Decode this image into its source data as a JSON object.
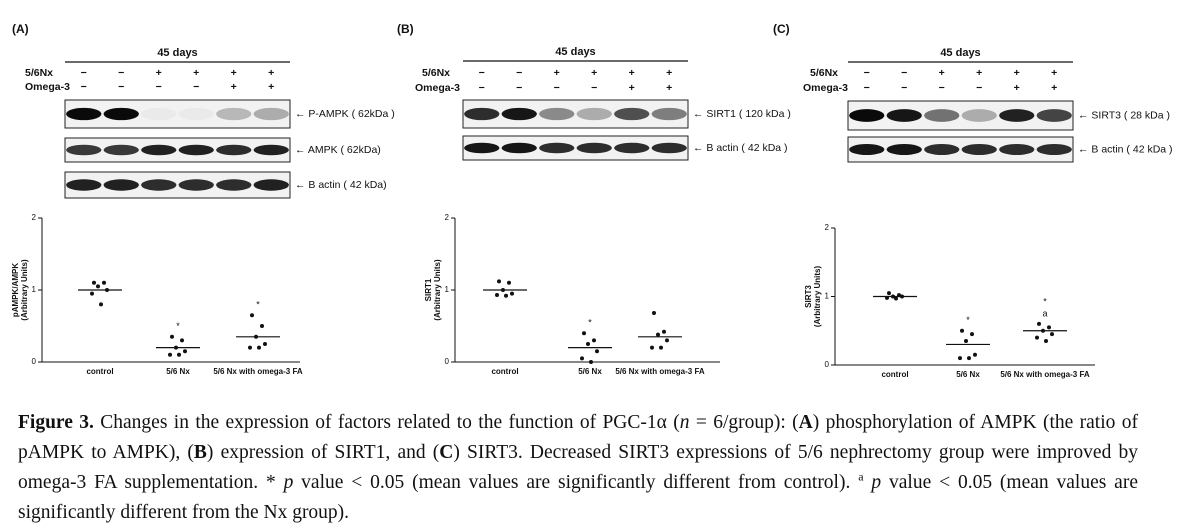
{
  "panels": [
    {
      "label": "(A)",
      "header": "45 days",
      "rows": [
        {
          "name": "5/6Nx",
          "signs": [
            "−",
            "−",
            "+",
            "+",
            "+",
            "+"
          ]
        },
        {
          "name": "Omega-3",
          "signs": [
            "−",
            "−",
            "−",
            "−",
            "+",
            "+"
          ]
        }
      ],
      "bands": [
        "← P-AMPK ( 62kDa )",
        "← AMPK ( 62kDa)",
        "← B actin ( 42 kDa)"
      ]
    },
    {
      "label": "(B)",
      "header": "45 days",
      "rows": [
        {
          "name": "5/6Nx",
          "signs": [
            "−",
            "−",
            "+",
            "+",
            "+",
            "+"
          ]
        },
        {
          "name": "Omega-3",
          "signs": [
            "−",
            "−",
            "−",
            "−",
            "+",
            "+"
          ]
        }
      ],
      "bands": [
        "← SIRT1 ( 120 kDa )",
        "← B actin ( 42 kDa )"
      ]
    },
    {
      "label": "(C)",
      "header": "45 days",
      "rows": [
        {
          "name": "5/6Nx",
          "signs": [
            "−",
            "−",
            "+",
            "+",
            "+",
            "+"
          ]
        },
        {
          "name": "Omega-3",
          "signs": [
            "−",
            "−",
            "−",
            "−",
            "+",
            "+"
          ]
        }
      ],
      "bands": [
        "← SIRT3 ( 28 kDa )",
        "← B actin ( 42 kDa )"
      ]
    }
  ],
  "chart_data": [
    {
      "type": "scatter",
      "ylabel": [
        "pAMPK/AMPK",
        "(Arbitrary Units)"
      ],
      "categories": [
        "control",
        "5/6 Nx",
        "5/6 Nx with omega-3 FA"
      ],
      "points": [
        [
          1.1,
          1.1,
          1.05,
          1.0,
          0.95,
          0.8
        ],
        [
          0.35,
          0.3,
          0.2,
          0.15,
          0.1,
          0.1
        ],
        [
          0.65,
          0.5,
          0.35,
          0.25,
          0.2,
          0.2
        ]
      ],
      "means": [
        1.0,
        0.2,
        0.35
      ],
      "annotations": [
        [],
        [
          "*"
        ],
        [
          "*"
        ]
      ],
      "ylim": [
        0,
        2
      ],
      "yticks": [
        0,
        1,
        2
      ],
      "color": "#111111"
    },
    {
      "type": "scatter",
      "ylabel": [
        "SIRT1",
        "(Arbitrary Units)"
      ],
      "categories": [
        "control",
        "5/6 Nx",
        "5/6 Nx with omega-3 FA"
      ],
      "points": [
        [
          1.12,
          1.1,
          1.0,
          0.95,
          0.93,
          0.92
        ],
        [
          0.4,
          0.3,
          0.25,
          0.15,
          0.05,
          0.0
        ],
        [
          0.68,
          0.42,
          0.38,
          0.3,
          0.2,
          0.2
        ]
      ],
      "means": [
        1.0,
        0.2,
        0.35
      ],
      "annotations": [
        [],
        [
          "*"
        ],
        []
      ],
      "ylim": [
        0,
        2
      ],
      "yticks": [
        0,
        1,
        2
      ],
      "color": "#111111"
    },
    {
      "type": "scatter",
      "ylabel": [
        "SIRT3",
        "(Arbitrary Units)"
      ],
      "categories": [
        "control",
        "5/6 Nx",
        "5/6 Nx with omega-3 FA"
      ],
      "points": [
        [
          1.05,
          1.02,
          1.0,
          1.0,
          0.98,
          0.97
        ],
        [
          0.5,
          0.45,
          0.35,
          0.15,
          0.1,
          0.1
        ],
        [
          0.6,
          0.55,
          0.5,
          0.45,
          0.4,
          0.35
        ]
      ],
      "means": [
        1.0,
        0.3,
        0.5
      ],
      "annotations": [
        [],
        [
          "*"
        ],
        [
          "*",
          "a"
        ]
      ],
      "ylim": [
        0,
        2
      ],
      "yticks": [
        0,
        1,
        2
      ],
      "color": "#111111"
    }
  ],
  "caption": [
    {
      "text": "Figure 3.",
      "style": "bold"
    },
    {
      "text": " Changes in the expression of factors related to the function of PGC-1α ("
    },
    {
      "text": "n",
      "style": "italic"
    },
    {
      "text": " = 6/group): ("
    },
    {
      "text": "A",
      "style": "bold"
    },
    {
      "text": ") phosphorylation of AMPK (the ratio of pAMPK to AMPK), ("
    },
    {
      "text": "B",
      "style": "bold"
    },
    {
      "text": ") expression of SIRT1, and ("
    },
    {
      "text": "C",
      "style": "bold"
    },
    {
      "text": ") SIRT3. Decreased SIRT3 expressions of 5/6 nephrectomy group were improved by omega-3 FA supplementation. * "
    },
    {
      "text": "p",
      "style": "italic"
    },
    {
      "text": " value < 0.05 (mean values are significantly different from control). "
    },
    {
      "text": "a",
      "style": "sup"
    },
    {
      "text": " "
    },
    {
      "text": "p",
      "style": "italic"
    },
    {
      "text": " value < 0.05 (mean values are significantly different from the Nx group)."
    }
  ]
}
